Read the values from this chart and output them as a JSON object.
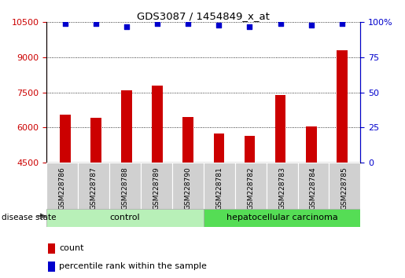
{
  "title": "GDS3087 / 1454849_x_at",
  "samples": [
    "GSM228786",
    "GSM228787",
    "GSM228788",
    "GSM228789",
    "GSM228790",
    "GSM228781",
    "GSM228782",
    "GSM228783",
    "GSM228784",
    "GSM228785"
  ],
  "counts": [
    6550,
    6400,
    7600,
    7800,
    6450,
    5750,
    5650,
    7400,
    6050,
    9300
  ],
  "percentiles": [
    99,
    99,
    97,
    99,
    99,
    98,
    97,
    99,
    98,
    99
  ],
  "ylim_left": [
    4500,
    10500
  ],
  "ylim_right": [
    0,
    100
  ],
  "yticks_left": [
    4500,
    6000,
    7500,
    9000,
    10500
  ],
  "yticks_right": [
    0,
    25,
    50,
    75,
    100
  ],
  "bar_color": "#cc0000",
  "dot_color": "#0000cc",
  "control_color": "#b8f0b8",
  "carcinoma_color": "#55dd55",
  "label_box_color": "#d0d0d0",
  "label_count": "count",
  "label_percentile": "percentile rank within the sample",
  "disease_state_label": "disease state",
  "control_label": "control",
  "carcinoma_label": "hepatocellular carcinoma",
  "tick_color_left": "#cc0000",
  "tick_color_right": "#0000cc",
  "grid_color": "#000000",
  "n_control": 5,
  "n_total": 10
}
